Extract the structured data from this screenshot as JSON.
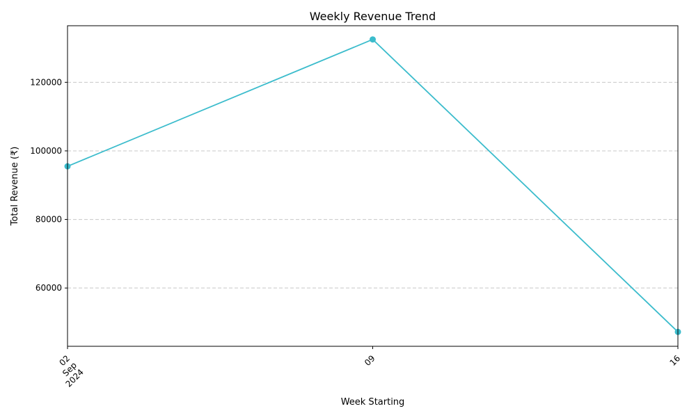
{
  "chart_data": {
    "type": "line",
    "title": "Weekly Revenue Trend",
    "xlabel": "Week Starting",
    "ylabel": "Total Revenue (₹)",
    "x": [
      "2024-09-02",
      "2024-09-09",
      "2024-09-16"
    ],
    "x_tick_labels": [
      [
        "02",
        "Sep",
        "2024"
      ],
      [
        "09"
      ],
      [
        "16"
      ]
    ],
    "y_ticks": [
      60000,
      80000,
      100000,
      120000
    ],
    "ylim": [
      43000,
      136500
    ],
    "series": [
      {
        "color": "#3bbccc",
        "values": [
          95500,
          132500,
          47200
        ]
      }
    ],
    "grid": "y-dashed",
    "legend": "none"
  }
}
